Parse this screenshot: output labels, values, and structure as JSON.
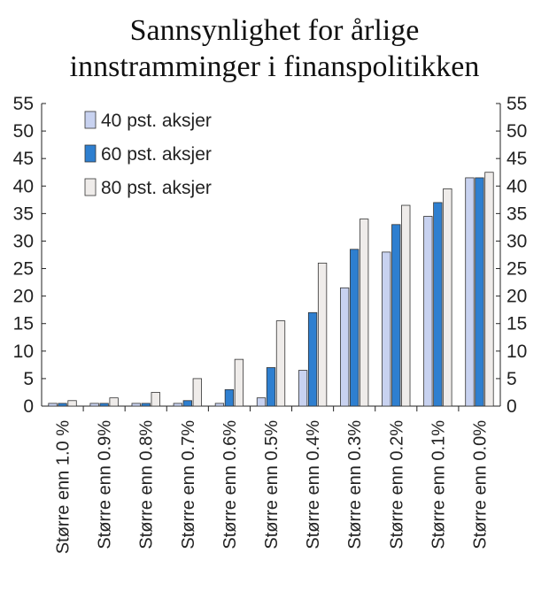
{
  "chart_data": {
    "type": "bar",
    "title_lines": [
      "Sannsynlighet for årlige",
      "innstramminger i finanspolitikken"
    ],
    "categories": [
      "Større enn 1.0 %",
      "Større enn 0.9%",
      "Større enn 0.8%",
      "Større enn 0.7%",
      "Større enn 0.6%",
      "Større enn 0.5%",
      "Større enn 0.4%",
      "Større enn 0.3%",
      "Større enn 0.2%",
      "Større enn 0.1%",
      "Større enn 0.0%"
    ],
    "series": [
      {
        "name": "40 pst. aksjer",
        "color": "#c8d2f0",
        "values": [
          0.5,
          0.5,
          0.5,
          0.5,
          0.5,
          1.5,
          6.5,
          21.5,
          28,
          34.5,
          41.5
        ]
      },
      {
        "name": "60 pst. aksjer",
        "color": "#2e7fd0",
        "values": [
          0.5,
          0.5,
          0.5,
          1,
          3,
          7,
          17,
          28.5,
          33,
          37,
          41.5
        ]
      },
      {
        "name": "80 pst. aksjer",
        "color": "#efecea",
        "values": [
          1,
          1.5,
          2.5,
          5,
          8.5,
          15.5,
          26,
          34,
          36.5,
          39.5,
          42.5
        ]
      }
    ],
    "ylim": [
      0,
      55
    ],
    "yticks": [
      "0",
      "5",
      "10",
      "15",
      "20",
      "25",
      "30",
      "35",
      "40",
      "45",
      "50",
      "55"
    ],
    "legend_position": "top-left",
    "grid": false
  }
}
